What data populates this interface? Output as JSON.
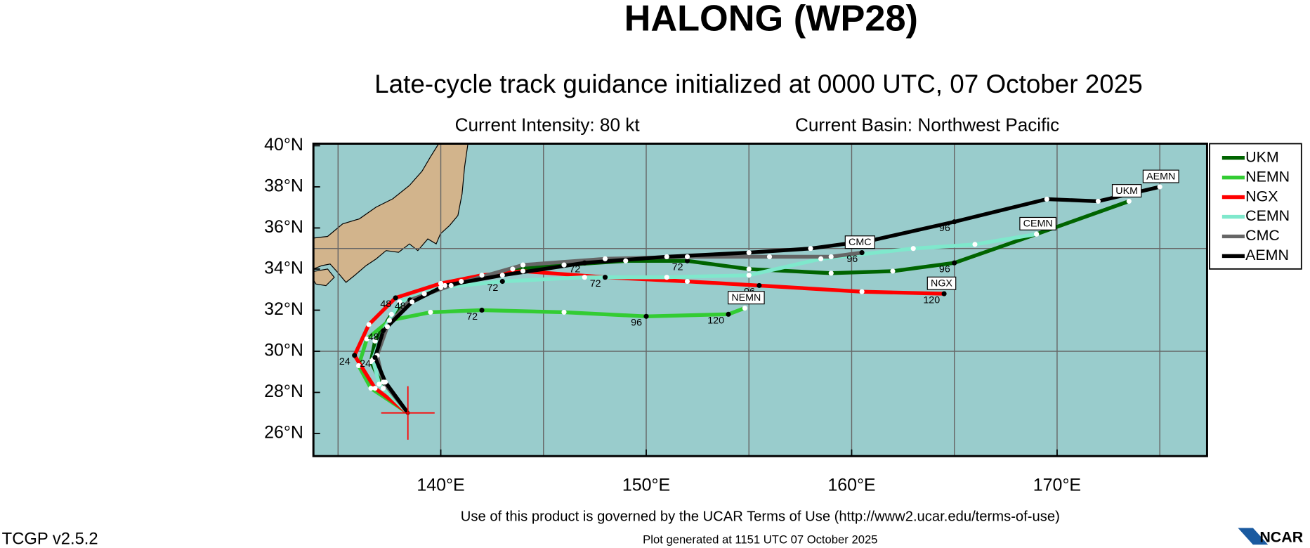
{
  "chart_data": {
    "type": "map",
    "title": "HALONG (WP28)",
    "subtitle": "Late-cycle track guidance initialized at 0000 UTC, 07 October 2025",
    "intensity": "Current Intensity: 80 kt",
    "basin": "Current Basin: Northwest Pacific",
    "footer_terms": "Use of this product is governed by the UCAR Terms of Use (http://www2.ucar.edu/terms-of-use)",
    "footer_version": "TCGP v2.5.2",
    "footer_generated": "Plot generated at 1151 UTC   07 October 2025",
    "logo": "NCAR",
    "xlim": [
      133.8,
      177.3
    ],
    "ylim": [
      24.9,
      40.1
    ],
    "xticks": [
      {
        "value": 140,
        "label": "140°E"
      },
      {
        "value": 150,
        "label": "150°E"
      },
      {
        "value": 160,
        "label": "160°E"
      },
      {
        "value": 170,
        "label": "170°E"
      }
    ],
    "yticks": [
      {
        "value": 26,
        "label": "26°N"
      },
      {
        "value": 28,
        "label": "28°N"
      },
      {
        "value": 30,
        "label": "30°N"
      },
      {
        "value": 32,
        "label": "32°N"
      },
      {
        "value": 34,
        "label": "34°N"
      },
      {
        "value": 36,
        "label": "36°N"
      },
      {
        "value": 38,
        "label": "38°N"
      },
      {
        "value": 40,
        "label": "40°N"
      }
    ],
    "grid_lon": [
      135,
      140,
      145,
      150,
      155,
      160,
      165,
      170,
      175
    ],
    "grid_lat": [
      30,
      35
    ],
    "legend": "right",
    "storm_position": {
      "lon": 138.4,
      "lat": 27.0
    },
    "series": [
      {
        "name": "UKM",
        "color": "#006400",
        "x": [
          138.4,
          137.2,
          136.6,
          136.8,
          137.6,
          139.2,
          141,
          143.5,
          146,
          149,
          152,
          155,
          159,
          162,
          165,
          169,
          173.5
        ],
        "values": [
          27.0,
          28.2,
          29.5,
          30.5,
          31.8,
          32.8,
          33.4,
          34.0,
          34.2,
          34.4,
          34.4,
          34.0,
          33.8,
          33.9,
          34.3,
          35.7,
          37.3
        ],
        "point_labels": [
          null,
          null,
          null,
          null,
          null,
          null,
          null,
          null,
          null,
          null,
          "72",
          null,
          null,
          null,
          "96",
          null,
          null
        ]
      },
      {
        "name": "NEMN",
        "color": "#33cc33",
        "x": [
          138.4,
          136.6,
          136.0,
          136.4,
          137.5,
          139.5,
          142,
          146,
          150,
          154,
          154.8
        ],
        "values": [
          27.0,
          28.2,
          29.3,
          30.6,
          31.5,
          31.9,
          32.0,
          31.9,
          31.7,
          31.8,
          32.1
        ],
        "point_labels": [
          null,
          null,
          null,
          null,
          null,
          null,
          "72",
          null,
          "96",
          "120",
          null
        ]
      },
      {
        "name": "NGX",
        "color": "#ff0000",
        "x": [
          138.4,
          136.8,
          135.8,
          136.5,
          137.8,
          140,
          142,
          144,
          148,
          152,
          155.5,
          160.5,
          164.5
        ],
        "values": [
          27.0,
          28.2,
          29.8,
          31.3,
          32.6,
          33.3,
          33.7,
          33.9,
          33.6,
          33.4,
          33.2,
          32.9,
          32.8
        ],
        "point_labels": [
          null,
          null,
          "24",
          null,
          "48",
          null,
          null,
          null,
          "72",
          null,
          "96",
          null,
          "120"
        ]
      },
      {
        "name": "CEMN",
        "color": "#7fe8cc",
        "x": [
          138.4,
          137,
          136.7,
          137.2,
          138,
          140,
          143,
          147,
          151,
          155,
          158.5,
          163,
          166,
          169
        ],
        "values": [
          27.0,
          28.4,
          29.6,
          31.0,
          32.4,
          33.1,
          33.4,
          33.6,
          33.6,
          33.7,
          34.5,
          35.0,
          35.2,
          35.7
        ],
        "point_labels": [
          null,
          null,
          null,
          null,
          null,
          null,
          "72",
          null,
          null,
          null,
          null,
          null,
          null,
          null
        ]
      },
      {
        "name": "CMC",
        "color": "#666666",
        "x": [
          138.4,
          137.2,
          136.9,
          137.4,
          138.5,
          140.5,
          144,
          148,
          152,
          156,
          159,
          160.5
        ],
        "values": [
          27.0,
          28.5,
          29.8,
          31.2,
          32.5,
          33.2,
          34.2,
          34.5,
          34.6,
          34.6,
          34.6,
          34.8
        ],
        "point_labels": [
          null,
          null,
          null,
          null,
          "48",
          null,
          null,
          null,
          null,
          null,
          null,
          "96"
        ]
      },
      {
        "name": "AEMN",
        "color": "#000000",
        "x": [
          138.4,
          137.3,
          136.8,
          137.2,
          138.6,
          140.2,
          143,
          147,
          151,
          155,
          158,
          161,
          165,
          169.5,
          172,
          175
        ],
        "values": [
          27.0,
          28.5,
          29.7,
          31.0,
          32.4,
          33.2,
          33.7,
          34.3,
          34.6,
          34.8,
          35.0,
          35.4,
          36.3,
          37.4,
          37.3,
          38.0
        ],
        "point_labels": [
          null,
          null,
          "24",
          "48",
          null,
          null,
          null,
          "72",
          null,
          null,
          null,
          null,
          "96",
          null,
          null,
          null
        ]
      }
    ]
  }
}
